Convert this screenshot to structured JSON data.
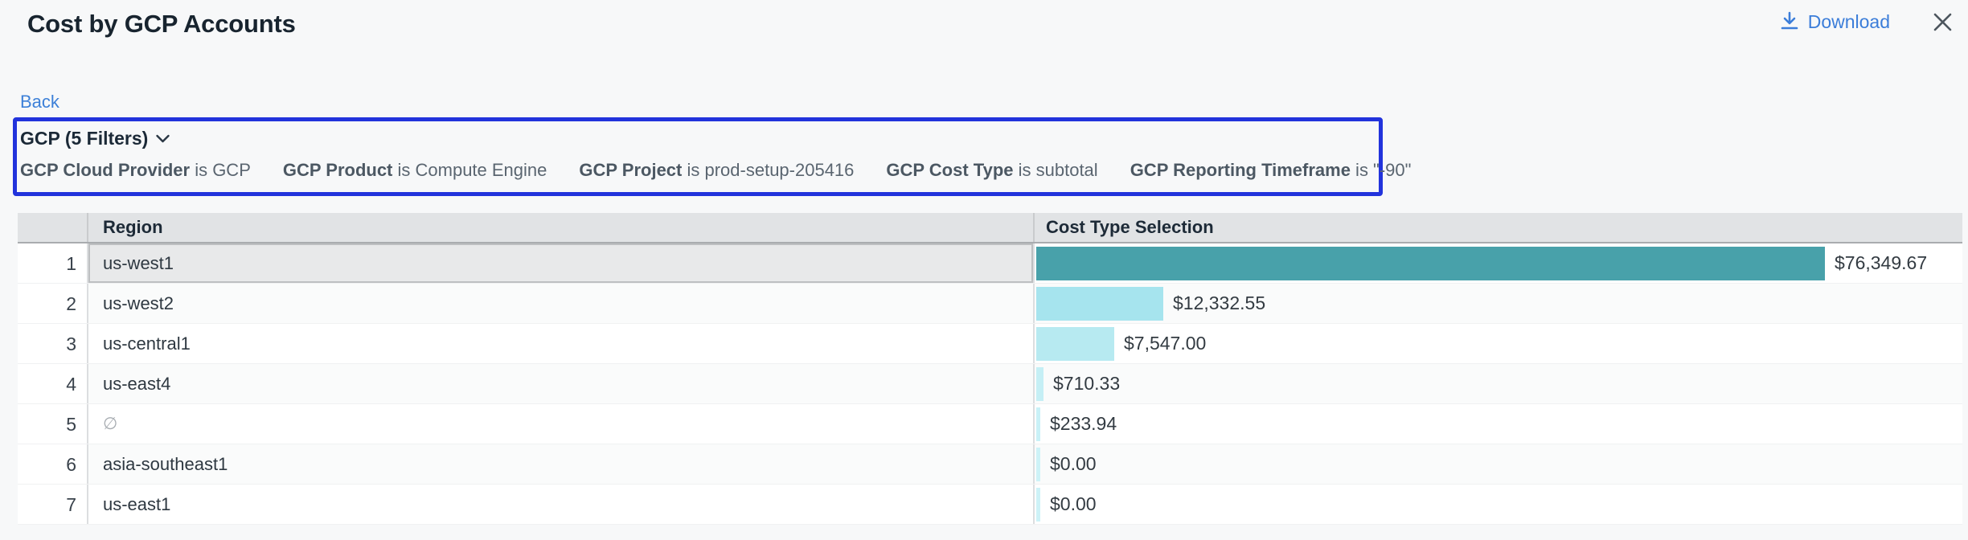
{
  "header": {
    "title": "Cost by GCP Accounts",
    "download_label": "Download"
  },
  "back_label": "Back",
  "filter_bar": {
    "summary": "GCP (5 Filters)",
    "filters": [
      {
        "field": "GCP Cloud Provider",
        "condition": "is GCP"
      },
      {
        "field": "GCP Product",
        "condition": "is Compute Engine"
      },
      {
        "field": "GCP Project",
        "condition": "is prod-setup-205416"
      },
      {
        "field": "GCP Cost Type",
        "condition": "is subtotal"
      },
      {
        "field": "GCP Reporting Timeframe",
        "condition": "is \"-90\""
      }
    ]
  },
  "table": {
    "columns": {
      "index": "",
      "region": "Region",
      "cost": "Cost Type Selection"
    },
    "max_value": 76349.67,
    "rows": [
      {
        "num": "1",
        "region": "us-west1",
        "null_region": false,
        "selected": true,
        "value": 76349.67,
        "label": "$76,349.67",
        "bar_color": "#48a1aa"
      },
      {
        "num": "2",
        "region": "us-west2",
        "null_region": false,
        "selected": false,
        "value": 12332.55,
        "label": "$12,332.55",
        "bar_color": "#a6e4ee"
      },
      {
        "num": "3",
        "region": "us-central1",
        "null_region": false,
        "selected": false,
        "value": 7547.0,
        "label": "$7,547.00",
        "bar_color": "#b7eaf1"
      },
      {
        "num": "4",
        "region": "us-east4",
        "null_region": false,
        "selected": false,
        "value": 710.33,
        "label": "$710.33",
        "bar_color": "#c5eff5"
      },
      {
        "num": "5",
        "region": "∅",
        "null_region": true,
        "selected": false,
        "value": 233.94,
        "label": "$233.94",
        "bar_color": "#c9f1f7"
      },
      {
        "num": "6",
        "region": "asia-southeast1",
        "null_region": false,
        "selected": false,
        "value": 0.0,
        "label": "$0.00",
        "bar_color": "#cdf2f7"
      },
      {
        "num": "7",
        "region": "us-east1",
        "null_region": false,
        "selected": false,
        "value": 0.0,
        "label": "$0.00",
        "bar_color": "#cdf2f7"
      }
    ]
  },
  "colors": {
    "accent_blue": "#3b7dd9",
    "filter_border_blue": "#2233dc",
    "bar_teal": "#48a1aa",
    "bar_cyan": "#a6e4ee",
    "header_gray": "#e1e3e5",
    "selected_row_gray": "#e8e9ea"
  }
}
